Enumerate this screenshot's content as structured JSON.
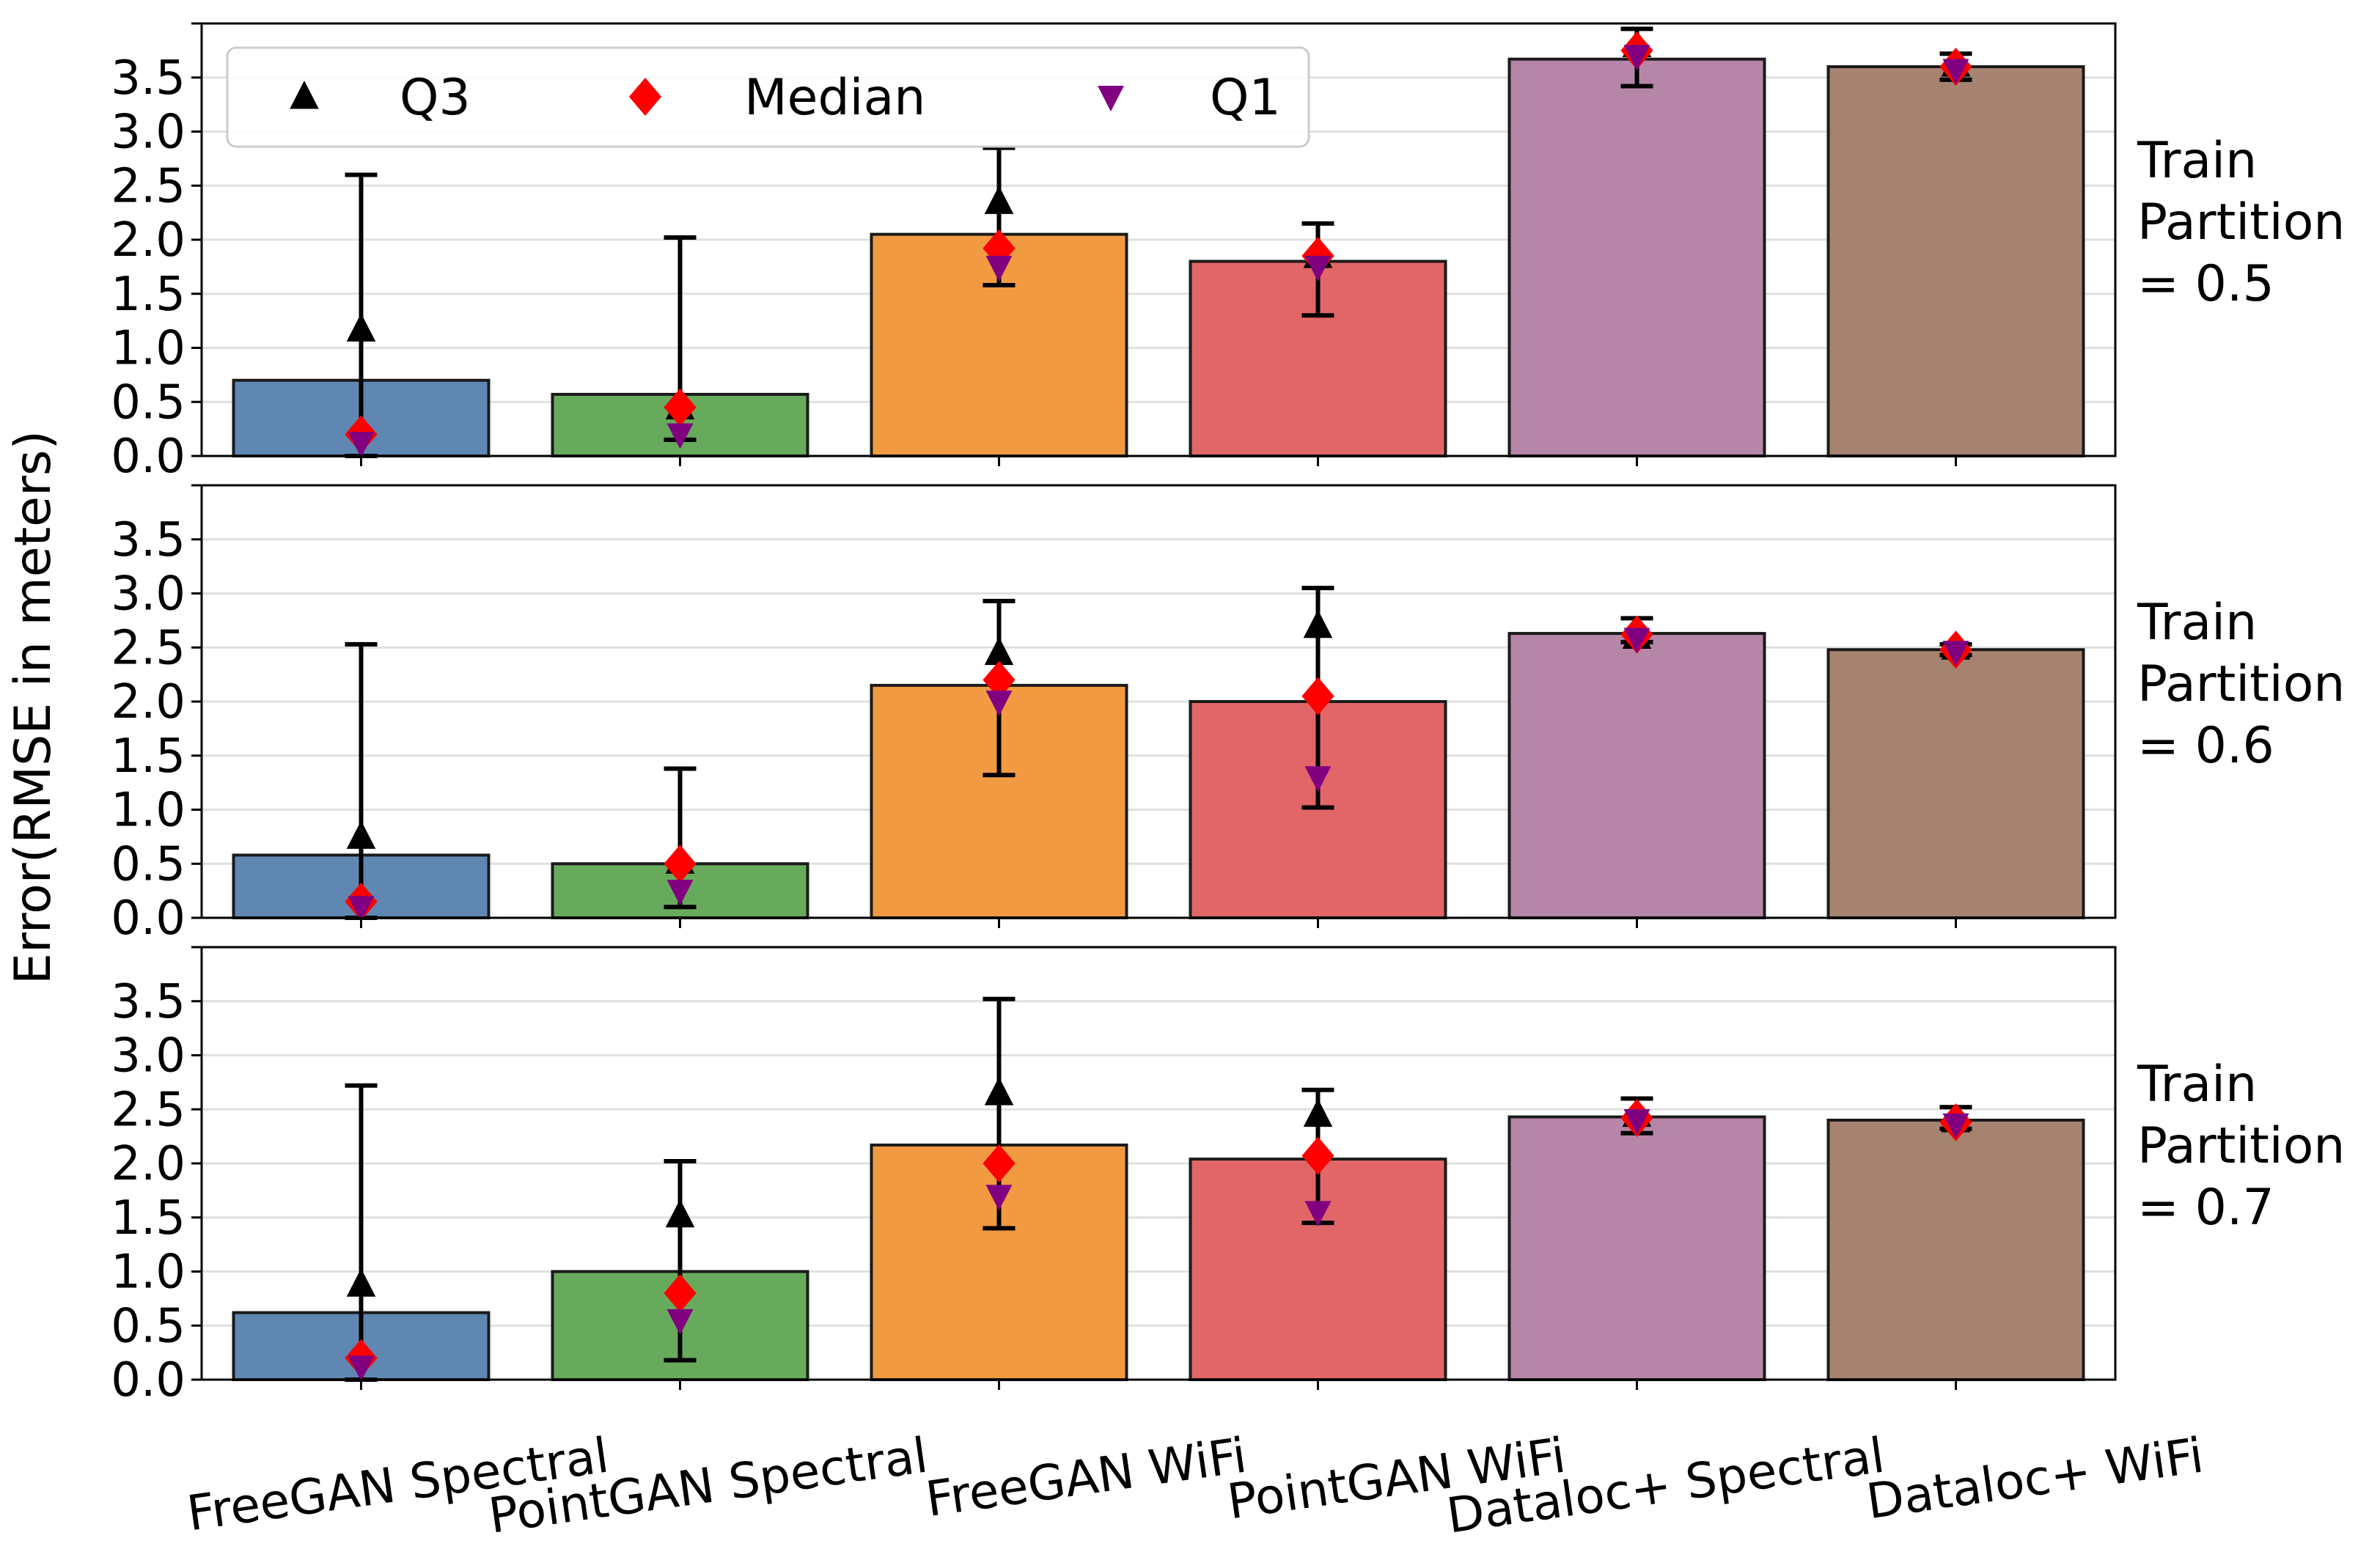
{
  "chart_data": {
    "type": "bar",
    "ylabel": "Error(RMSE in meters)",
    "ylim": [
      0,
      4.0
    ],
    "yticks": [
      "0.0",
      "0.5",
      "1.0",
      "1.5",
      "2.0",
      "2.5",
      "3.0",
      "3.5"
    ],
    "ytick_values": [
      0,
      0.5,
      1.0,
      1.5,
      2.0,
      2.5,
      3.0,
      3.5
    ],
    "grid": "horizontal",
    "categories": [
      "FreeGAN Spectral",
      "PointGAN Spectral",
      "FreeGAN WiFi",
      "PointGAN WiFi",
      "Dataloc+ Spectral",
      "Dataloc+ WiFi"
    ],
    "bar_colors": [
      "#5f87b2",
      "#68aa5c",
      "#f19a42",
      "#e26668",
      "#b686a8",
      "#a68370"
    ],
    "legend": {
      "placement": "top-left",
      "entries": [
        {
          "label": "Q3",
          "marker": "triangle-up",
          "color": "#000000"
        },
        {
          "label": "Median",
          "marker": "diamond",
          "color": "#ff0000"
        },
        {
          "label": "Q1",
          "marker": "triangle-down",
          "color": "#800080"
        }
      ]
    },
    "panels": [
      {
        "row_label": [
          "Train",
          "Partition",
          " = 0.5"
        ],
        "values": [
          0.7,
          0.57,
          2.05,
          1.8,
          3.67,
          3.6
        ],
        "err_low": [
          0.0,
          0.15,
          1.58,
          1.3,
          3.42,
          3.48
        ],
        "err_high": [
          2.6,
          2.02,
          2.85,
          2.15,
          3.95,
          3.72
        ],
        "q3": [
          1.17,
          0.45,
          2.35,
          1.85,
          3.8,
          3.62
        ],
        "median": [
          0.2,
          0.45,
          1.92,
          1.85,
          3.75,
          3.6
        ],
        "q1": [
          0.12,
          0.2,
          1.75,
          1.75,
          3.7,
          3.57
        ]
      },
      {
        "row_label": [
          "Train",
          "Partition",
          " = 0.6"
        ],
        "values": [
          0.58,
          0.5,
          2.15,
          2.0,
          2.63,
          2.48
        ],
        "err_low": [
          0.0,
          0.1,
          1.32,
          1.02,
          2.55,
          2.43
        ],
        "err_high": [
          2.53,
          1.38,
          2.93,
          3.05,
          2.77,
          2.53
        ],
        "q3": [
          0.75,
          0.52,
          2.45,
          2.7,
          2.6,
          2.5
        ],
        "median": [
          0.15,
          0.5,
          2.2,
          2.05,
          2.62,
          2.48
        ],
        "q1": [
          0.1,
          0.25,
          2.0,
          1.3,
          2.58,
          2.46
        ]
      },
      {
        "row_label": [
          "Train",
          "Partition",
          " = 0.7"
        ],
        "values": [
          0.62,
          1.0,
          2.17,
          2.04,
          2.43,
          2.4
        ],
        "err_low": [
          0.0,
          0.18,
          1.4,
          1.45,
          2.28,
          2.32
        ],
        "err_high": [
          2.72,
          2.02,
          3.52,
          2.68,
          2.6,
          2.52
        ],
        "q3": [
          0.88,
          1.52,
          2.65,
          2.45,
          2.45,
          2.4
        ],
        "median": [
          0.2,
          0.8,
          2.0,
          2.07,
          2.42,
          2.38
        ],
        "q1": [
          0.12,
          0.55,
          1.7,
          1.55,
          2.4,
          2.36
        ]
      }
    ]
  }
}
